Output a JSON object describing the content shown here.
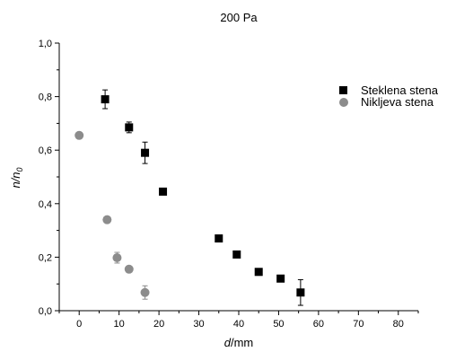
{
  "chart_data": {
    "type": "scatter",
    "title": "200 Pa",
    "xlabel": "d/mm",
    "ylabel": "n/n₀",
    "xlabel_parts": {
      "symbol": "d",
      "unit": "/mm"
    },
    "ylabel_parts": {
      "main": "n/n",
      "sub": "0"
    },
    "xlim": [
      -5,
      85
    ],
    "ylim": [
      0,
      1.0
    ],
    "x_ticks": [
      0,
      10,
      20,
      30,
      40,
      50,
      60,
      70,
      80
    ],
    "y_ticks": [
      0.0,
      0.2,
      0.4,
      0.6,
      0.8,
      1.0
    ],
    "x_tick_labels": [
      "0",
      "10",
      "20",
      "30",
      "40",
      "50",
      "60",
      "70",
      "80"
    ],
    "y_tick_labels": [
      "0,0",
      "0,2",
      "0,4",
      "0,6",
      "0,8",
      "1,0"
    ],
    "grid": false,
    "legend_position": "top-right",
    "series": [
      {
        "name": "Steklena stena",
        "marker": "square",
        "color": "#000000",
        "points": [
          {
            "x": 6.5,
            "y": 0.79,
            "err": 0.035
          },
          {
            "x": 12.5,
            "y": 0.685,
            "err": 0.02
          },
          {
            "x": 16.5,
            "y": 0.59,
            "err": 0.04
          },
          {
            "x": 21,
            "y": 0.445,
            "err": 0
          },
          {
            "x": 35,
            "y": 0.27,
            "err": 0.01
          },
          {
            "x": 39.5,
            "y": 0.21,
            "err": 0
          },
          {
            "x": 45,
            "y": 0.145,
            "err": 0.01
          },
          {
            "x": 50.5,
            "y": 0.12,
            "err": 0.01
          },
          {
            "x": 55.5,
            "y": 0.068,
            "err": 0.048
          }
        ]
      },
      {
        "name": "Nikljeva stena",
        "marker": "circle",
        "color": "#8c8c8c",
        "points": [
          {
            "x": 0,
            "y": 0.655,
            "err": 0
          },
          {
            "x": 7,
            "y": 0.34,
            "err": 0
          },
          {
            "x": 9.5,
            "y": 0.198,
            "err": 0.02
          },
          {
            "x": 12.5,
            "y": 0.155,
            "err": 0
          },
          {
            "x": 16.5,
            "y": 0.068,
            "err": 0.025
          }
        ]
      }
    ]
  }
}
